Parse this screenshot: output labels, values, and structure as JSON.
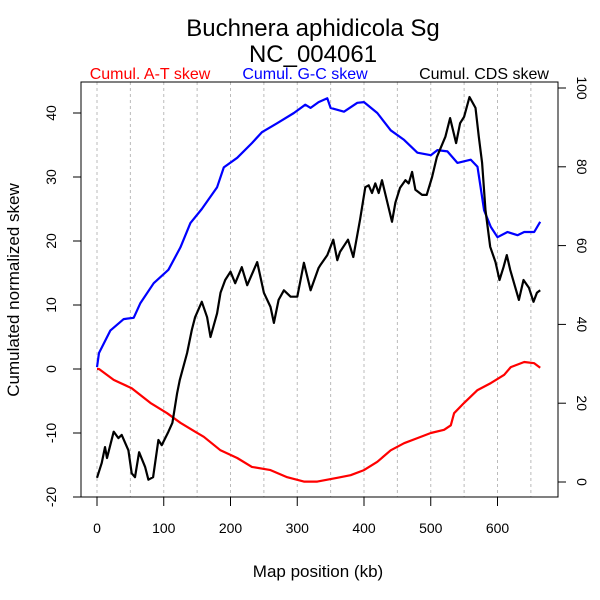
{
  "chart_data": {
    "type": "line",
    "title": "Buchnera aphidicola Sg",
    "subtitle": "NC_004061",
    "xlabel": "Map position (kb)",
    "ylabel": "Cumulated normalized skew",
    "xlim": [
      0,
      670
    ],
    "ylim": [
      -20,
      45
    ],
    "y2lim": [
      0,
      100
    ],
    "x_ticks": [
      0,
      100,
      200,
      300,
      400,
      500,
      600
    ],
    "y_ticks": [
      -20,
      -10,
      0,
      10,
      20,
      30,
      40
    ],
    "y2_ticks": [
      0,
      20,
      40,
      60,
      80,
      100
    ],
    "grid": "vertical dashed every 50 kb",
    "legend_placement": "top",
    "series": [
      {
        "name": "Cumul. A-T skew",
        "color": "#ff0000",
        "axis": "left",
        "x": [
          0,
          3,
          25,
          52,
          80,
          105,
          125,
          147,
          160,
          185,
          210,
          232,
          260,
          285,
          310,
          330,
          360,
          380,
          400,
          420,
          440,
          460,
          480,
          500,
          520,
          530,
          535,
          550,
          570,
          590,
          610,
          620,
          640,
          655,
          664
        ],
        "y": [
          0,
          0,
          -1.7,
          -3,
          -5.3,
          -6.9,
          -8.4,
          -9.8,
          -10.6,
          -12.7,
          -13.9,
          -15.3,
          -15.8,
          -16.9,
          -17.6,
          -17.6,
          -17,
          -16.6,
          -15.8,
          -14.5,
          -12.7,
          -11.6,
          -10.8,
          -10,
          -9.5,
          -8.8,
          -6.9,
          -5.3,
          -3.3,
          -2.2,
          -0.9,
          0.3,
          1.1,
          0.9,
          0.2
        ]
      },
      {
        "name": "Cumul. G-C skew",
        "color": "#0000ff",
        "axis": "left",
        "x": [
          0,
          3,
          20,
          40,
          55,
          65,
          85,
          107,
          125,
          140,
          157,
          180,
          190,
          210,
          232,
          247,
          270,
          295,
          312,
          320,
          332,
          345,
          350,
          370,
          390,
          400,
          420,
          440,
          460,
          480,
          500,
          510,
          525,
          540,
          560,
          570,
          580,
          590,
          600,
          615,
          630,
          640,
          655,
          664
        ],
        "y": [
          0.3,
          2.5,
          6,
          7.8,
          8,
          10.3,
          13.4,
          15.5,
          19,
          22.8,
          25,
          28.4,
          31.5,
          33,
          35.3,
          37,
          38.4,
          40,
          41.3,
          40.8,
          41.7,
          42.3,
          40.8,
          40.2,
          41.6,
          41.7,
          40,
          37.3,
          35.8,
          33.8,
          33.4,
          34.2,
          34,
          32.2,
          32.7,
          31.6,
          24.8,
          22.2,
          20.6,
          21.4,
          20.9,
          21.4,
          21.4,
          23
        ]
      },
      {
        "name": "Cumul. CDS skew",
        "color": "#000000",
        "axis": "left",
        "x": [
          0,
          7,
          12,
          15,
          25,
          32,
          37,
          47,
          52,
          57,
          63,
          72,
          77,
          84,
          92,
          97,
          107,
          113,
          120,
          124,
          135,
          142,
          147,
          157,
          165,
          170,
          180,
          185,
          192,
          200,
          207,
          217,
          225,
          240,
          250,
          260,
          265,
          272,
          280,
          290,
          300,
          310,
          320,
          332,
          335,
          345,
          354,
          360,
          364,
          376,
          384,
          394,
          402,
          407,
          412,
          417,
          422,
          427,
          442,
          447,
          454,
          462,
          467,
          472,
          477,
          487,
          494,
          502,
          509,
          522,
          529,
          538,
          544,
          550,
          558,
          567,
          572,
          577,
          582,
          589,
          597,
          603,
          609,
          614,
          619,
          632,
          639,
          647,
          654,
          659,
          664
        ],
        "y": [
          -17,
          -14.7,
          -12.2,
          -13.9,
          -9.8,
          -10.8,
          -10.3,
          -12.7,
          -16.3,
          -16.9,
          -13,
          -15.3,
          -17.3,
          -16.9,
          -11.1,
          -11.9,
          -9.8,
          -8.4,
          -3.8,
          -1.7,
          2.5,
          6.1,
          8.1,
          10.5,
          8.1,
          5,
          8.7,
          11.9,
          13.9,
          15.2,
          13.4,
          15.9,
          13.1,
          16.7,
          11.9,
          9.7,
          7.2,
          10.8,
          12.3,
          11.3,
          11.3,
          16.6,
          12.3,
          15.8,
          16.3,
          17.8,
          20.2,
          17,
          18.3,
          20.2,
          17.5,
          23.3,
          28.4,
          28.7,
          27.5,
          29,
          27.5,
          29.5,
          23,
          26,
          28.3,
          29.5,
          29,
          30.8,
          28,
          27.2,
          27.2,
          30,
          33.1,
          36.3,
          39.2,
          35.3,
          38.4,
          39.4,
          42.5,
          40.8,
          36.3,
          32.2,
          24.8,
          19.1,
          16.7,
          13.9,
          15.9,
          17.8,
          15.5,
          10.8,
          13.9,
          12.7,
          10.5,
          11.9,
          12.3
        ]
      }
    ]
  }
}
